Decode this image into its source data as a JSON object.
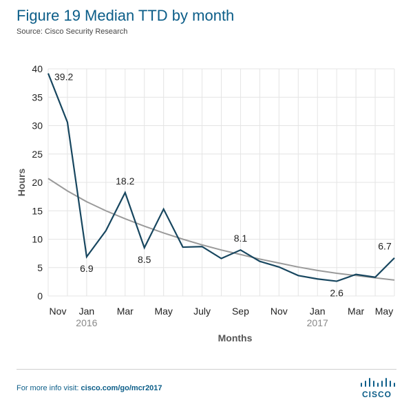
{
  "header": {
    "title": "Figure 19  Median TTD by month",
    "source": "Source: Cisco Security Research"
  },
  "footer": {
    "prefix": "For more info visit: ",
    "link": "cisco.com/go/mcr2017",
    "logo_text": "CISCO"
  },
  "colors": {
    "brand": "#0b5d88",
    "series_line": "#17465f",
    "trend_line": "#9a9a9a",
    "grid": "#e4e4e4"
  },
  "chart_data": {
    "type": "line",
    "xlabel": "Months",
    "ylabel": "Hours",
    "ylim": [
      0,
      40
    ],
    "yticks": [
      0,
      5,
      10,
      15,
      20,
      25,
      30,
      35,
      40
    ],
    "grid": true,
    "x": [
      "Nov 2015",
      "Dec 2015",
      "Jan 2016",
      "Feb 2016",
      "Mar 2016",
      "Apr 2016",
      "May 2016",
      "Jun 2016",
      "Jul 2016",
      "Aug 2016",
      "Sep 2016",
      "Oct 2016",
      "Nov 2016",
      "Dec 2016",
      "Jan 2017",
      "Feb 2017",
      "Mar 2017",
      "Apr 2017",
      "May 2017"
    ],
    "x_tick_labels": [
      "Nov",
      "",
      "Jan",
      "",
      "Mar",
      "",
      "May",
      "",
      "July",
      "",
      "Sep",
      "",
      "Nov",
      "",
      "Jan",
      "",
      "Mar",
      "",
      "May"
    ],
    "year_labels": [
      {
        "index": 2,
        "text": "2016"
      },
      {
        "index": 14,
        "text": "2017"
      }
    ],
    "series": [
      {
        "values": [
          39.2,
          30.6,
          6.9,
          11.5,
          18.2,
          8.5,
          15.3,
          8.6,
          8.7,
          6.6,
          8.1,
          6.1,
          5.1,
          3.6,
          3.0,
          2.6,
          3.8,
          3.3,
          6.7
        ]
      }
    ],
    "trend": {
      "values": [
        20.7,
        18.5,
        16.6,
        15.0,
        13.6,
        12.3,
        11.1,
        10.0,
        9.0,
        8.1,
        7.3,
        6.5,
        5.8,
        5.1,
        4.5,
        4.0,
        3.6,
        3.2,
        2.8
      ]
    },
    "annotations": [
      {
        "index": 0,
        "text": "39.2",
        "pos": "right"
      },
      {
        "index": 2,
        "text": "6.9",
        "pos": "below"
      },
      {
        "index": 4,
        "text": "18.2",
        "pos": "above"
      },
      {
        "index": 5,
        "text": "8.5",
        "pos": "below"
      },
      {
        "index": 10,
        "text": "8.1",
        "pos": "above"
      },
      {
        "index": 15,
        "text": "2.6",
        "pos": "below"
      },
      {
        "index": 18,
        "text": "6.7",
        "pos": "above-left"
      }
    ]
  }
}
